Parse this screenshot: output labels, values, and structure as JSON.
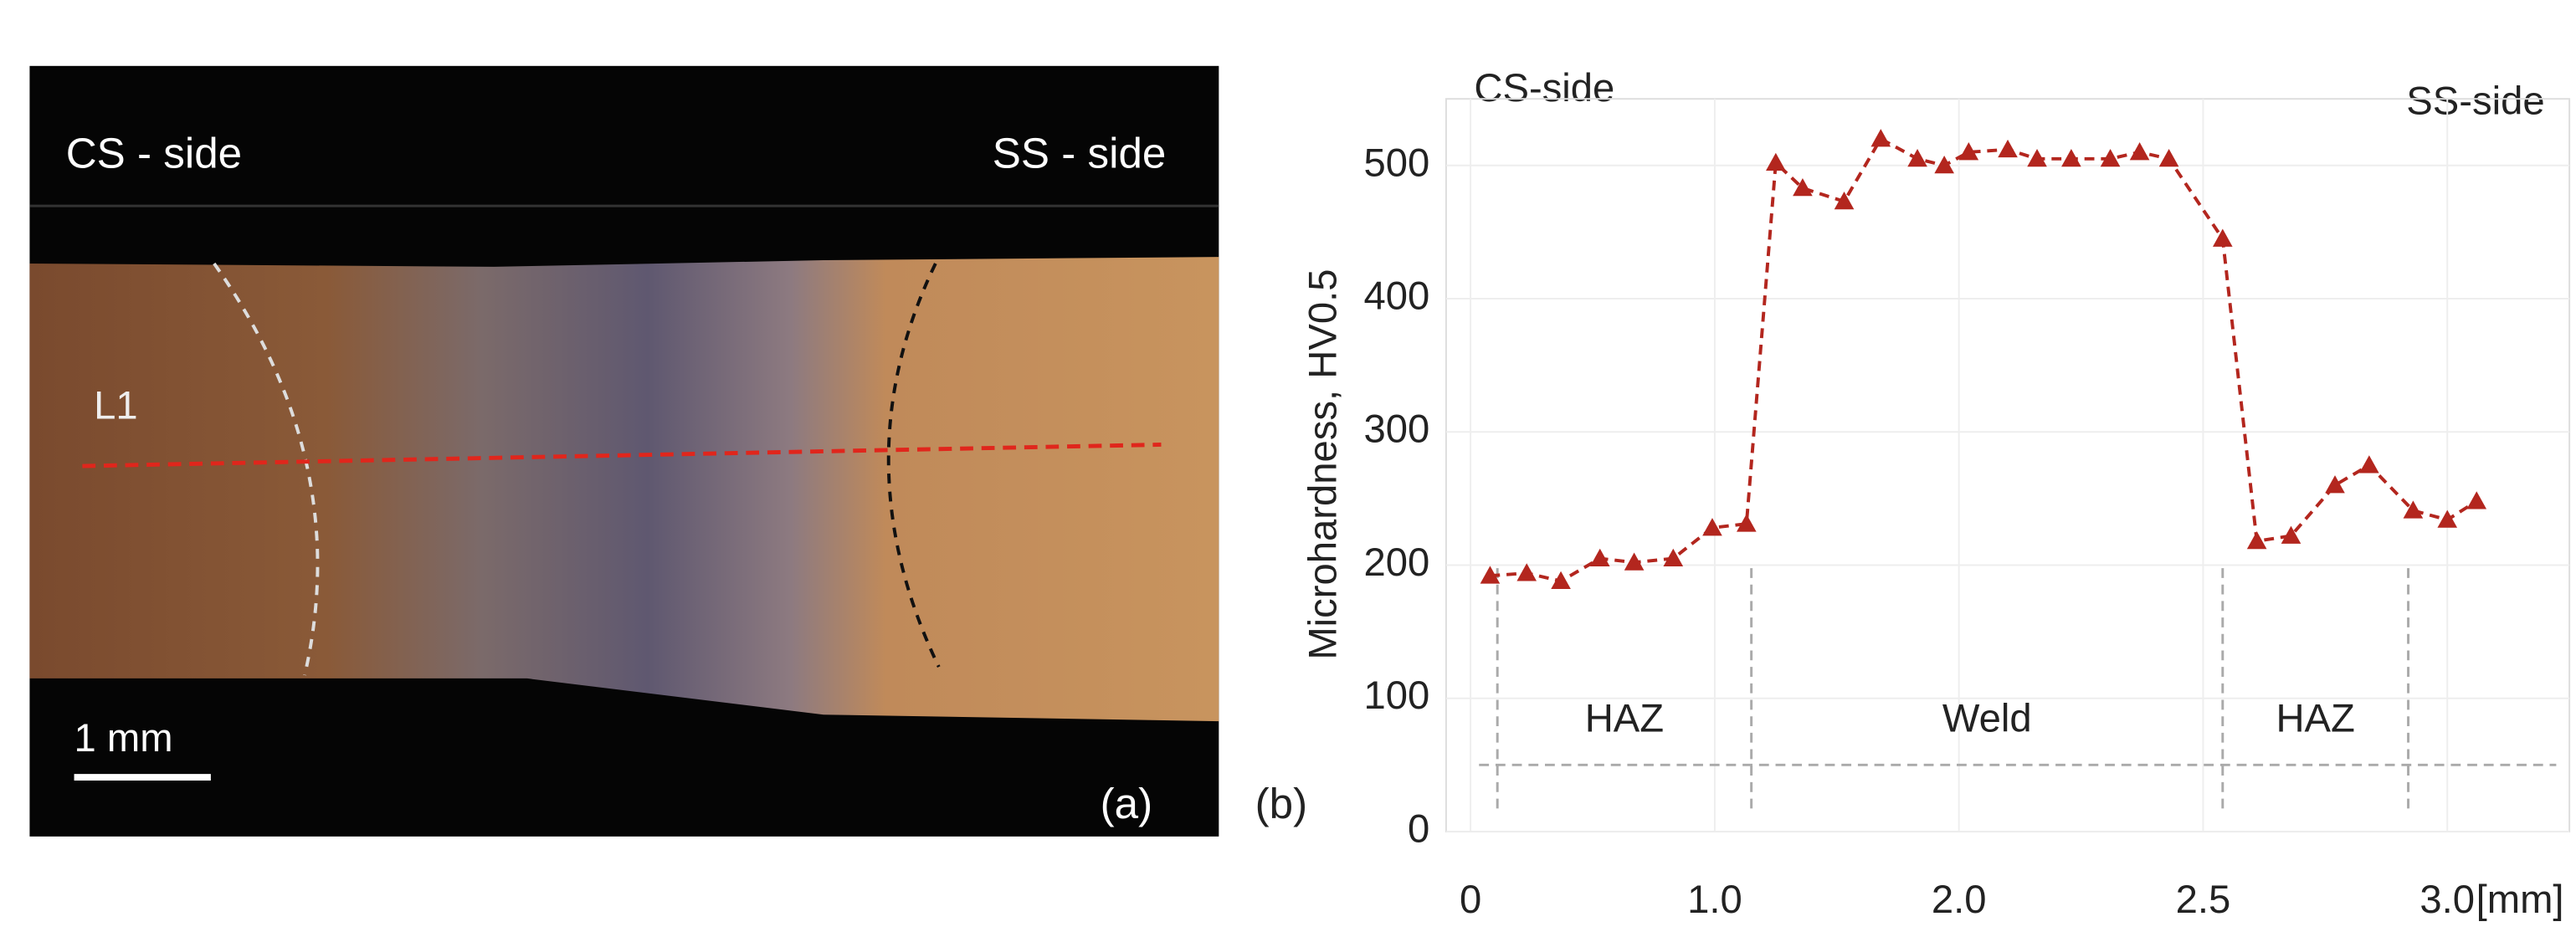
{
  "image_panel": {
    "left_label": "CS - side",
    "right_label": "SS - side",
    "line_label": "L1",
    "scale_label": "1 mm",
    "panel_label": "(a)"
  },
  "chart_data": {
    "type": "line",
    "panel_label": "(b)",
    "left_annotation": "CS-side",
    "right_annotation": "SS-side",
    "y_label": "Microhardness, HV0.5",
    "x_unit_label": "[mm]",
    "x": [
      0.08,
      0.23,
      0.37,
      0.53,
      0.67,
      0.83,
      0.99,
      1.13,
      1.25,
      1.36,
      1.53,
      1.68,
      1.83,
      1.94,
      2.02,
      2.1,
      2.16,
      2.23,
      2.31,
      2.37,
      2.43,
      2.54,
      2.61,
      2.68,
      2.77,
      2.84,
      2.93,
      3.0,
      3.06
    ],
    "values": [
      192,
      194,
      188,
      205,
      202,
      205,
      228,
      231,
      502,
      483,
      473,
      520,
      505,
      500,
      510,
      512,
      505,
      505,
      505,
      510,
      505,
      445,
      218,
      222,
      260,
      275,
      241,
      234,
      248
    ],
    "color": "#b3261e",
    "marker": "triangle",
    "line_style": "dashed",
    "xscale": "piecewise",
    "xlim": [
      -0.1,
      3.25
    ],
    "xticks": [
      0,
      {
        "value": 1,
        "label": "1.0"
      },
      {
        "value": 2,
        "label": "2.0"
      },
      2.5,
      {
        "value": 3,
        "label": "3.0"
      }
    ],
    "ylim": [
      0,
      550
    ],
    "yticks": [
      0,
      100,
      200,
      300,
      400,
      500
    ],
    "grid": true,
    "zones": [
      {
        "label": "HAZ",
        "start": 0.11,
        "end": 1.15
      },
      {
        "label": "Weld",
        "start": 1.15,
        "end": 2.54
      },
      {
        "label": "HAZ",
        "start": 2.54,
        "end": 2.92
      }
    ],
    "zone_line_y": 50
  }
}
